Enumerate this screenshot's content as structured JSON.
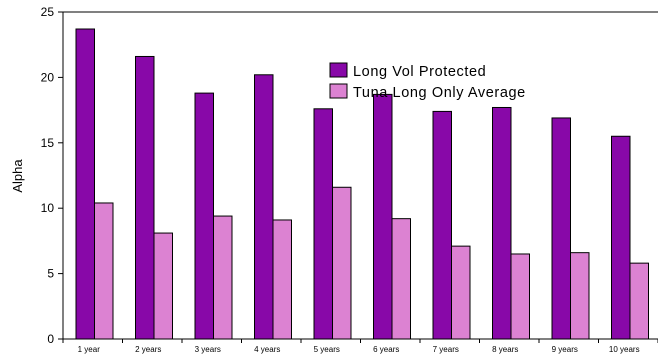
{
  "chart_data": {
    "type": "bar",
    "ylabel": "Alpha",
    "xlabel": "",
    "ylim": [
      0,
      25
    ],
    "yticks": [
      0,
      5,
      10,
      15,
      20,
      25
    ],
    "grid": false,
    "legend_position": "top-right",
    "categories": [
      "1 year",
      "2 years",
      "3 years",
      "4 years",
      "5 years",
      "6 years",
      "7 years",
      "8 years",
      "9 years",
      "10 years"
    ],
    "series": [
      {
        "name": "Long Vol Protected",
        "color": "#8808a8",
        "values": [
          23.7,
          21.6,
          18.8,
          20.2,
          17.6,
          18.7,
          17.4,
          17.7,
          16.9,
          15.5
        ]
      },
      {
        "name": "Tuna Long Only Average",
        "color": "#dc82d2",
        "values": [
          10.4,
          8.1,
          9.4,
          9.1,
          11.6,
          9.2,
          7.1,
          6.5,
          6.6,
          5.8
        ]
      }
    ]
  }
}
